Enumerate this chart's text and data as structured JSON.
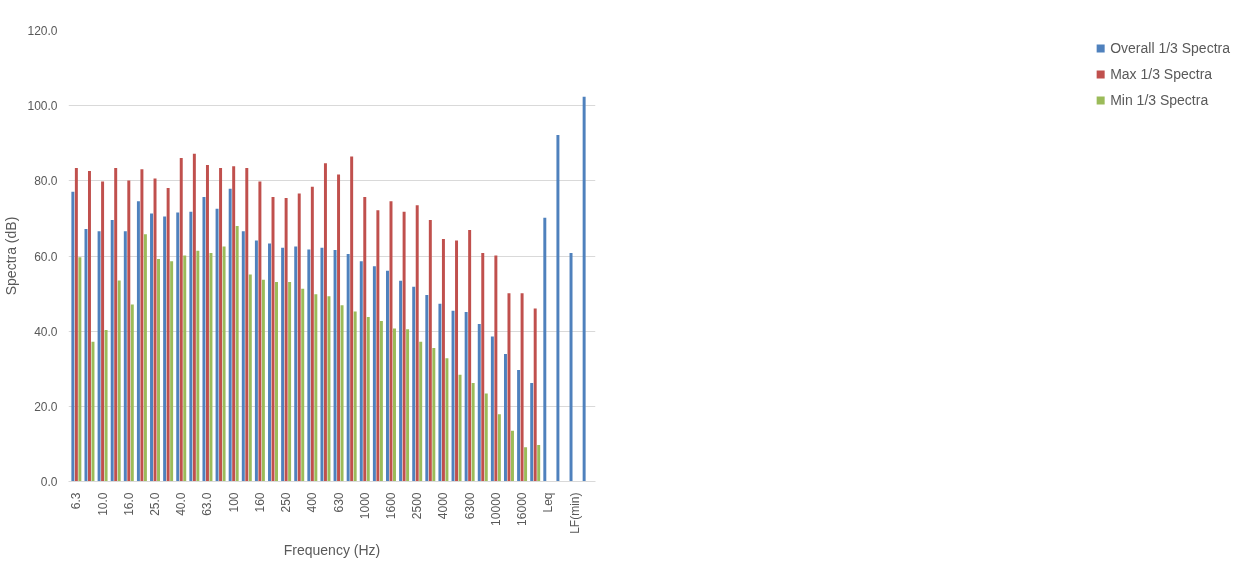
{
  "chart_data": {
    "type": "bar",
    "xlabel": "Frequency (Hz)",
    "ylabel": "Spectra (dB)",
    "categories": [
      "6.3",
      null,
      "10.0",
      null,
      "16.0",
      null,
      "25.0",
      null,
      "40.0",
      null,
      "63.0",
      null,
      "100",
      null,
      "160",
      null,
      "250",
      null,
      "400",
      null,
      "630",
      null,
      "1000",
      null,
      "1600",
      null,
      "2500",
      null,
      "4000",
      null,
      "6300",
      null,
      "10000",
      null,
      "16000",
      null,
      "Leq",
      null,
      "LF(min)",
      null
    ],
    "series": [
      {
        "name": "Overall 1/3 Spectra",
        "color": "#4f81bd",
        "values": [
          77.1,
          67.2,
          66.6,
          69.6,
          66.6,
          74.6,
          71.3,
          70.5,
          71.6,
          71.8,
          75.7,
          72.6,
          77.9,
          66.6,
          64.1,
          63.3,
          62.2,
          62.5,
          61.7,
          62.2,
          61.6,
          60.5,
          58.6,
          57.3,
          56.1,
          53.4,
          51.8,
          49.6,
          47.3,
          45.4,
          45.1,
          41.9,
          38.6,
          33.9,
          29.7,
          26.2,
          70.2,
          92.2,
          60.8,
          102.4
        ]
      },
      {
        "name": "Max 1/3 Spectra",
        "color": "#c0504d",
        "values": [
          83.4,
          82.6,
          79.8,
          83.4,
          80.1,
          83.1,
          80.6,
          78.1,
          86.1,
          87.2,
          84.2,
          83.4,
          83.9,
          83.4,
          79.8,
          75.7,
          75.4,
          76.6,
          78.4,
          84.7,
          81.7,
          86.5,
          75.7,
          72.2,
          74.6,
          71.8,
          73.5,
          69.6,
          64.5,
          64.1,
          66.9,
          60.8,
          60.1,
          50.1,
          50.1,
          46.0,
          null,
          null,
          null,
          null
        ]
      },
      {
        "name": "Min 1/3 Spectra",
        "color": "#9bbb59",
        "values": [
          59.7,
          37.2,
          40.3,
          53.5,
          47.1,
          65.8,
          59.2,
          58.6,
          60.1,
          61.4,
          60.8,
          62.5,
          68.0,
          55.1,
          53.7,
          53.1,
          53.1,
          51.3,
          49.8,
          49.3,
          46.9,
          45.2,
          43.8,
          42.7,
          40.7,
          40.5,
          37.2,
          35.5,
          32.8,
          28.4,
          26.2,
          23.4,
          17.9,
          13.5,
          9.1,
          9.7,
          null,
          null,
          null,
          null
        ]
      }
    ],
    "ylim": [
      0,
      120
    ],
    "yticks": [
      {
        "value": 0,
        "label": "0.0"
      },
      {
        "value": 20,
        "label": "20.0"
      },
      {
        "value": 40,
        "label": "40.0"
      },
      {
        "value": 60,
        "label": "60.0"
      },
      {
        "value": 80,
        "label": "80.0"
      },
      {
        "value": 100,
        "label": "100.0"
      },
      {
        "value": 120,
        "label": "120.0"
      }
    ],
    "grid": "y",
    "legend": "right"
  }
}
